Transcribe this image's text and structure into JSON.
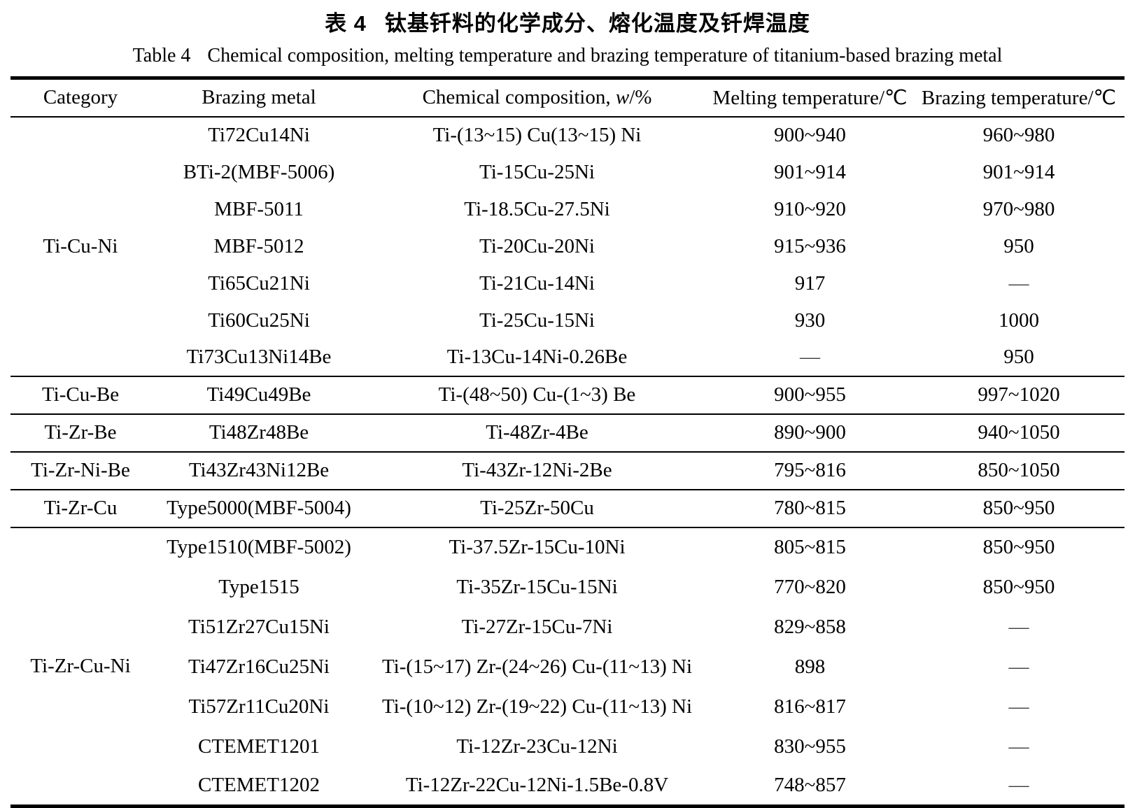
{
  "page": {
    "title_cn": {
      "label": "表 4",
      "text": "钛基钎料的化学成分、熔化温度及钎焊温度"
    },
    "title_en": {
      "label": "Table 4",
      "text": "Chemical composition, melting temperature and brazing temperature of titanium-based brazing metal"
    }
  },
  "header": {
    "category": "Category",
    "brazing_metal": "Brazing metal",
    "chemical_prefix": "Chemical composition, ",
    "chemical_w": "w",
    "chemical_suffix": "/%",
    "melting": "Melting temperature/℃",
    "brazing": "Brazing temperature/℃"
  },
  "table": {
    "column_keys": [
      "brazing_metal",
      "chemical_composition",
      "melting_temperature",
      "brazing_temperature"
    ],
    "groups": [
      {
        "category": "Ti-Cu-Ni",
        "rows": [
          [
            "Ti72Cu14Ni",
            "Ti-(13~15) Cu(13~15) Ni",
            "900~940",
            "960~980"
          ],
          [
            "BTi-2(MBF-5006)",
            "Ti-15Cu-25Ni",
            "901~914",
            "901~914"
          ],
          [
            "MBF-5011",
            "Ti-18.5Cu-27.5Ni",
            "910~920",
            "970~980"
          ],
          [
            "MBF-5012",
            "Ti-20Cu-20Ni",
            "915~936",
            "950"
          ],
          [
            "Ti65Cu21Ni",
            "Ti-21Cu-14Ni",
            "917",
            "—"
          ],
          [
            "Ti60Cu25Ni",
            "Ti-25Cu-15Ni",
            "930",
            "1000"
          ],
          [
            "Ti73Cu13Ni14Be",
            "Ti-13Cu-14Ni-0.26Be",
            "—",
            "950"
          ]
        ]
      },
      {
        "category": "Ti-Cu-Be",
        "rows": [
          [
            "Ti49Cu49Be",
            "Ti-(48~50) Cu-(1~3) Be",
            "900~955",
            "997~1020"
          ]
        ]
      },
      {
        "category": "Ti-Zr-Be",
        "rows": [
          [
            "Ti48Zr48Be",
            "Ti-48Zr-4Be",
            "890~900",
            "940~1050"
          ]
        ]
      },
      {
        "category": "Ti-Zr-Ni-Be",
        "rows": [
          [
            "Ti43Zr43Ni12Be",
            "Ti-43Zr-12Ni-2Be",
            "795~816",
            "850~1050"
          ]
        ]
      },
      {
        "category": "Ti-Zr-Cu",
        "rows": [
          [
            "Type5000(MBF-5004)",
            "Ti-25Zr-50Cu",
            "780~815",
            "850~950"
          ]
        ]
      },
      {
        "category": "Ti-Zr-Cu-Ni",
        "rows": [
          [
            "Type1510(MBF-5002)",
            "Ti-37.5Zr-15Cu-10Ni",
            "805~815",
            "850~950"
          ],
          [
            "Type1515",
            "Ti-35Zr-15Cu-15Ni",
            "770~820",
            "850~950"
          ],
          [
            "Ti51Zr27Cu15Ni",
            "Ti-27Zr-15Cu-7Ni",
            "829~858",
            "—"
          ],
          [
            "Ti47Zr16Cu25Ni",
            "Ti-(15~17) Zr-(24~26) Cu-(11~13) Ni",
            "898",
            "—"
          ],
          [
            "Ti57Zr11Cu20Ni",
            "Ti-(10~12) Zr-(19~22) Cu-(11~13) Ni",
            "816~817",
            "—"
          ],
          [
            "CTEMET1201",
            "Ti-12Zr-23Cu-12Ni",
            "830~955",
            "—"
          ],
          [
            "CTEMET1202",
            "Ti-12Zr-22Cu-12Ni-1.5Be-0.8V",
            "748~857",
            "—"
          ]
        ]
      }
    ]
  }
}
